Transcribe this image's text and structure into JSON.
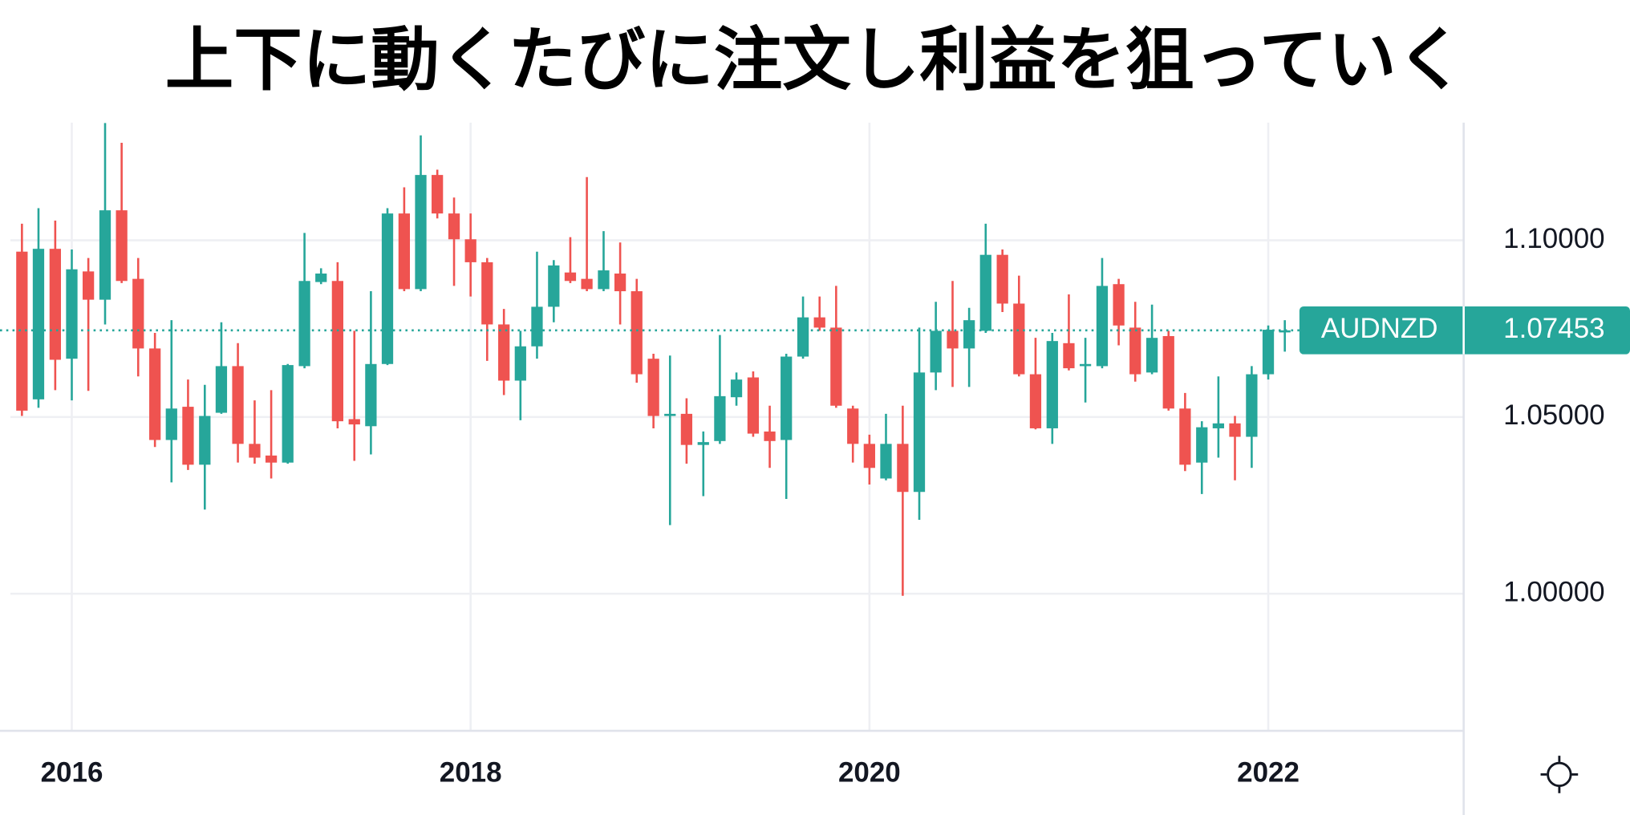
{
  "chart_data": {
    "type": "candlestick",
    "title": "上下に動くたびに注文し利益を狙っていく",
    "symbol": "AUDNZD",
    "up_color": "#26a69a",
    "down_color": "#ef5350",
    "grid": true,
    "x": [
      2015.75,
      2015.833,
      2015.917,
      2016,
      2016.083,
      2016.167,
      2016.25,
      2016.333,
      2016.417,
      2016.5,
      2016.583,
      2016.667,
      2016.75,
      2016.833,
      2016.917,
      2017,
      2017.083,
      2017.167,
      2017.25,
      2017.333,
      2017.417,
      2017.5,
      2017.583,
      2017.667,
      2017.75,
      2017.833,
      2017.917,
      2018,
      2018.083,
      2018.167,
      2018.25,
      2018.333,
      2018.417,
      2018.5,
      2018.583,
      2018.667,
      2018.75,
      2018.833,
      2018.917,
      2019,
      2019.083,
      2019.167,
      2019.25,
      2019.333,
      2019.417,
      2019.5,
      2019.583,
      2019.667,
      2019.75,
      2019.833,
      2019.917,
      2020,
      2020.083,
      2020.167,
      2020.25,
      2020.333,
      2020.417,
      2020.5,
      2020.583,
      2020.667,
      2020.75,
      2020.833,
      2020.917,
      2021,
      2021.083,
      2021.167,
      2021.25,
      2021.333,
      2021.417,
      2021.5,
      2021.583,
      2021.667,
      2021.75,
      2021.833,
      2021.917,
      2022,
      2022.083
    ],
    "open": [
      1.0968,
      1.055,
      1.0976,
      1.0665,
      1.0912,
      1.0832,
      1.1085,
      1.0891,
      1.0694,
      1.0435,
      1.0529,
      1.0365,
      1.0512,
      1.0644,
      1.0424,
      1.0391,
      1.0371,
      1.0644,
      1.0882,
      1.0885,
      1.0494,
      1.0474,
      1.065,
      1.1076,
      1.0862,
      1.1185,
      1.1076,
      1.1003,
      1.0938,
      1.0762,
      1.0603,
      1.07,
      1.0812,
      1.0909,
      1.0891,
      1.0862,
      1.0906,
      1.0856,
      1.0665,
      1.0503,
      1.0509,
      1.0421,
      1.0432,
      1.0556,
      1.0612,
      1.0459,
      1.0435,
      1.0671,
      1.0782,
      1.0753,
      1.0524,
      1.0424,
      1.0326,
      1.0424,
      1.0288,
      1.0626,
      1.0744,
      1.0694,
      1.0744,
      1.0959,
      1.0821,
      1.0621,
      1.0468,
      1.0709,
      1.0644,
      1.0644,
      1.0876,
      1.0753,
      1.0626,
      1.0729,
      1.0524,
      1.0371,
      1.0468,
      1.0482,
      1.0444,
      1.0621,
      1.0741
    ],
    "high": [
      1.1047,
      1.1091,
      1.1056,
      1.0974,
      1.095,
      1.1332,
      1.1276,
      1.095,
      1.0738,
      1.0774,
      1.0606,
      1.0591,
      1.0768,
      1.0709,
      1.0547,
      1.0576,
      1.065,
      1.1021,
      1.0921,
      1.0938,
      1.0744,
      1.0856,
      1.1091,
      1.115,
      1.1297,
      1.12,
      1.1121,
      1.1076,
      1.095,
      1.0806,
      1.0744,
      1.0968,
      1.0944,
      1.1009,
      1.1179,
      1.1026,
      1.0994,
      1.0891,
      1.0679,
      1.0674,
      1.0553,
      1.0459,
      1.0732,
      1.0626,
      1.0629,
      1.0532,
      1.0679,
      1.0841,
      1.0841,
      1.0871,
      1.0532,
      1.045,
      1.0509,
      1.0532,
      1.0753,
      1.0826,
      1.0885,
      1.0809,
      1.1047,
      1.0974,
      1.09,
      1.0724,
      1.0738,
      1.0847,
      1.0724,
      1.095,
      1.0891,
      1.0826,
      1.0818,
      1.0744,
      1.0568,
      1.0488,
      1.0615,
      1.0503,
      1.0644,
      1.0759,
      1.0774
    ],
    "low": [
      1.0503,
      1.0526,
      1.0576,
      1.0547,
      1.0574,
      1.0762,
      1.0879,
      1.0615,
      1.0415,
      1.0315,
      1.035,
      1.0238,
      1.0509,
      1.0371,
      1.0368,
      1.0326,
      1.0368,
      1.0638,
      1.0876,
      1.0468,
      1.0376,
      1.0394,
      1.0647,
      1.0856,
      1.0856,
      1.1062,
      1.0871,
      1.0841,
      1.0659,
      1.0562,
      1.0491,
      1.0665,
      1.0768,
      1.0879,
      1.0856,
      1.0856,
      1.0762,
      1.0597,
      1.0468,
      1.0194,
      1.0368,
      1.0276,
      1.0424,
      1.0532,
      1.0444,
      1.0356,
      1.0268,
      1.0665,
      1.0744,
      1.0526,
      1.0371,
      1.0309,
      1.0321,
      0.9994,
      1.0209,
      1.0576,
      1.0585,
      1.0585,
      1.0738,
      1.0797,
      1.0615,
      1.0465,
      1.0424,
      1.0632,
      1.0541,
      1.0638,
      1.0703,
      1.06,
      1.0621,
      1.0518,
      1.0347,
      1.0282,
      1.0385,
      1.0321,
      1.0356,
      1.0606,
      1.0685
    ],
    "close": [
      1.0518,
      1.0976,
      1.0662,
      1.0918,
      1.0832,
      1.1085,
      1.0885,
      1.0694,
      1.0435,
      1.0524,
      1.0365,
      1.0503,
      1.0644,
      1.0424,
      1.0385,
      1.0371,
      1.0647,
      1.0885,
      1.0906,
      1.0488,
      1.0479,
      1.065,
      1.1076,
      1.0862,
      1.1185,
      1.1076,
      1.1003,
      1.0938,
      1.0762,
      1.0603,
      1.07,
      1.0812,
      1.0929,
      1.0885,
      1.0862,
      1.0915,
      1.0856,
      1.0621,
      1.0503,
      1.0509,
      1.0421,
      1.0429,
      1.0559,
      1.0606,
      1.0453,
      1.0432,
      1.0671,
      1.0782,
      1.0753,
      1.0532,
      1.0424,
      1.0356,
      1.0424,
      1.0288,
      1.0626,
      1.0744,
      1.0694,
      1.0774,
      1.0959,
      1.0821,
      1.0621,
      1.0468,
      1.0715,
      1.0638,
      1.065,
      1.0871,
      1.0759,
      1.0621,
      1.0724,
      1.0524,
      1.0365,
      1.0471,
      1.0482,
      1.0444,
      1.0621,
      1.0747,
      1.07453
    ],
    "xlim": [
      2015.64,
      2022.98
    ],
    "xticks": [
      2016,
      2018,
      2020,
      2022
    ],
    "ylim": [
      0.9612,
      1.1333
    ],
    "yticks": [
      {
        "value": 1.0,
        "label": "1.00000"
      },
      {
        "value": 1.05,
        "label": "1.05000"
      },
      {
        "value": 1.1,
        "label": "1.10000"
      }
    ]
  }
}
